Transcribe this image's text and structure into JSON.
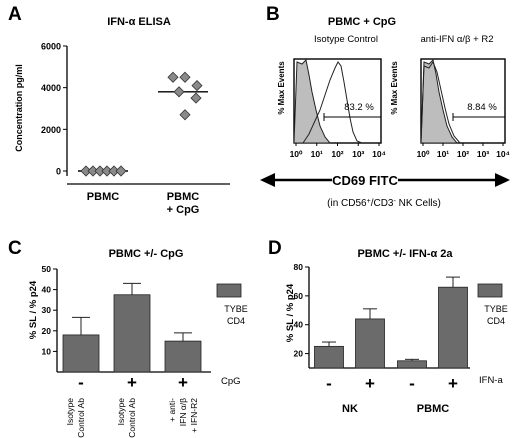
{
  "panels": {
    "A": {
      "letter": "A"
    },
    "B": {
      "letter": "B"
    },
    "C": {
      "letter": "C"
    },
    "D": {
      "letter": "D"
    }
  },
  "chart_data": [
    {
      "panel": "A",
      "type": "scatter",
      "title": "IFN-α ELISA",
      "ylabel": "Concentration pg/ml",
      "ylim": [
        0,
        6000
      ],
      "yticks": [
        "0",
        "2000",
        "4000",
        "6000"
      ],
      "categories": [
        "PBMC",
        "PBMC\n+ CpG"
      ],
      "category_lines": [
        [
          "PBMC"
        ],
        [
          "PBMC",
          "+ CpG"
        ]
      ],
      "series": [
        {
          "category": "PBMC",
          "values": [
            0,
            0,
            0,
            0,
            0,
            0
          ],
          "median": 0
        },
        {
          "category": "PBMC\n+ CpG",
          "values": [
            4500,
            4500,
            4100,
            3800,
            3500,
            2700
          ],
          "median": 3800
        }
      ],
      "colors": {
        "marker": "#8a8a8a",
        "marker_stroke": "#333333"
      }
    },
    {
      "panel": "B",
      "type": "histogram",
      "title": "PBMC + CpG",
      "xlabel": "CD69 FITC",
      "subcaption": "(in CD56+/CD3- NK Cells)",
      "ylabel": "% Max Events",
      "x_scale": "log",
      "xticks": [
        "10⁰",
        "10¹",
        "10²",
        "10³",
        "10⁴"
      ],
      "plots": [
        {
          "label": "Isotype Control",
          "gate_percent": "83.2 %"
        },
        {
          "label": "anti-IFN α/β + R2",
          "gate_percent": "8.84 %"
        }
      ]
    },
    {
      "panel": "C",
      "type": "bar",
      "title": "PBMC +/- CpG",
      "ylabel": "% SL / % p24",
      "ylim": [
        0,
        50
      ],
      "yticks": [
        "10",
        "20",
        "30",
        "40",
        "50"
      ],
      "legend": "TYBE\nCD4",
      "legend_lines": [
        "TYBE",
        "CD4"
      ],
      "categories": [
        "Isotype Control Ab",
        "Isotype Control Ab",
        "+ anti-IFN α/β + IFN-R2"
      ],
      "category_lines": [
        [
          "Isotype",
          "Control Ab"
        ],
        [
          "Isotype",
          "Control Ab"
        ],
        [
          "+ anti-",
          "IFN α/β",
          "+ IFN-R2"
        ]
      ],
      "signs": [
        "-",
        "+",
        "+"
      ],
      "sign_label": "CpG",
      "values": [
        18,
        37.5,
        15
      ],
      "errors": [
        8.5,
        5.5,
        4
      ],
      "colors": {
        "bar": "#6b6b6b"
      }
    },
    {
      "panel": "D",
      "type": "bar",
      "title": "PBMC +/- IFN-α 2a",
      "ylabel": "% SL / % p24",
      "ylim": [
        10,
        80
      ],
      "yticks": [
        "20",
        "40",
        "60",
        "80"
      ],
      "legend": "TYBE\nCD4",
      "legend_lines": [
        "TYBE",
        "CD4"
      ],
      "groups": [
        "NK",
        "PBMC"
      ],
      "signs": [
        "-",
        "+",
        "-",
        "+"
      ],
      "sign_label": "IFN-a",
      "values": [
        25,
        44,
        15,
        66
      ],
      "errors": [
        3,
        7,
        1,
        7
      ],
      "colors": {
        "bar": "#6b6b6b"
      }
    }
  ]
}
